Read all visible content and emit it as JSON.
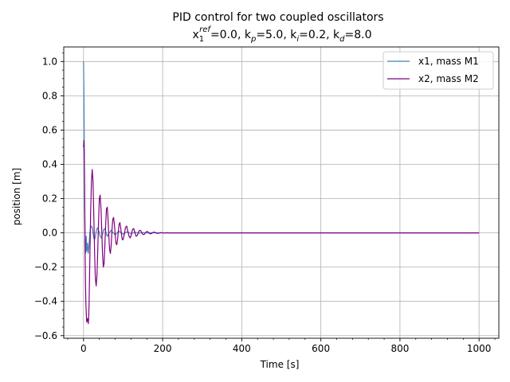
{
  "chart_data": {
    "type": "line",
    "title": "PID control for two coupled oscillators",
    "subtitle": {
      "pre": "x",
      "sub1": "1",
      "sup1": "ref",
      "part1": "=0.0, k",
      "sub2": "p",
      "part2": "=5.0, k",
      "sub3": "i",
      "part3": "=0.2, k",
      "sub4": "d",
      "part4": "=8.0"
    },
    "xlabel": "Time [s]",
    "ylabel": "position [m]",
    "xlim": [
      -50,
      1050
    ],
    "ylim": [
      -0.615,
      1.085
    ],
    "x_ticks": [
      0,
      200,
      400,
      600,
      800,
      1000
    ],
    "x_tick_labels": [
      "0",
      "200",
      "400",
      "600",
      "800",
      "1000"
    ],
    "y_ticks": [
      -0.6,
      -0.4,
      -0.2,
      0.0,
      0.2,
      0.4,
      0.6,
      0.8,
      1.0
    ],
    "y_tick_labels": [
      "−0.6",
      "−0.4",
      "−0.2",
      "0.0",
      "0.2",
      "0.4",
      "0.6",
      "0.8",
      "1.0"
    ],
    "grid": true,
    "legend_position": "top-right",
    "series": [
      {
        "name": "x1, mass M1",
        "color": "#4682b4",
        "x": [
          0,
          1,
          2,
          3,
          4,
          5,
          6,
          7,
          8,
          10,
          12,
          14,
          16,
          18,
          20,
          22,
          24,
          26,
          28,
          30,
          33,
          36,
          39,
          42,
          45,
          48,
          51,
          54,
          57,
          60,
          65,
          70,
          75,
          80,
          85,
          90,
          95,
          100,
          110,
          120,
          130,
          140,
          150,
          160,
          170,
          180,
          190,
          200,
          210,
          220,
          230,
          240,
          260,
          280,
          300,
          400,
          500,
          600,
          700,
          800,
          900,
          1000
        ],
        "values": [
          1.0,
          0.82,
          0.5,
          0.2,
          -0.05,
          -0.12,
          -0.08,
          -0.02,
          -0.11,
          -0.06,
          -0.12,
          -0.07,
          0.0,
          0.03,
          0.04,
          0.03,
          0.0,
          -0.03,
          -0.04,
          -0.02,
          0.02,
          0.03,
          0.01,
          -0.02,
          -0.03,
          -0.01,
          0.02,
          0.025,
          0.0,
          -0.02,
          0.0,
          0.015,
          0.0,
          -0.012,
          0.0,
          0.01,
          0.0,
          -0.008,
          0.006,
          -0.004,
          0.003,
          -0.002,
          0.002,
          -0.001,
          0.001,
          0.0,
          0.0,
          0.0,
          0.0,
          0.0,
          0.0,
          0.0,
          0.0,
          0.0,
          0.0,
          0.0,
          0.0,
          0.0,
          0.0,
          0.0,
          0.0,
          0.0
        ]
      },
      {
        "name": "x2, mass M2",
        "color": "#800080",
        "x": [
          0,
          1,
          2,
          3,
          4,
          5,
          6,
          8,
          10,
          12,
          13,
          14,
          16,
          18,
          20,
          22,
          24,
          26,
          28,
          30,
          32,
          34,
          36,
          38,
          40,
          42,
          44,
          46,
          48,
          50,
          52,
          54,
          56,
          58,
          60,
          62,
          64,
          66,
          68,
          70,
          72,
          74,
          76,
          78,
          80,
          82,
          84,
          86,
          88,
          90,
          92,
          94,
          96,
          98,
          100,
          103,
          106,
          109,
          112,
          115,
          118,
          121,
          124,
          127,
          130,
          133,
          136,
          139,
          142,
          145,
          148,
          151,
          154,
          157,
          160,
          163,
          166,
          169,
          172,
          175,
          178,
          181,
          184,
          187,
          190,
          195,
          200,
          205,
          210,
          215,
          220,
          230,
          240,
          250,
          260,
          280,
          300,
          400,
          500,
          600,
          700,
          800,
          900,
          1000
        ],
        "values": [
          0.5,
          0.54,
          0.42,
          0.15,
          -0.12,
          -0.3,
          -0.42,
          -0.52,
          -0.5,
          -0.53,
          -0.5,
          -0.42,
          -0.15,
          0.12,
          0.3,
          0.37,
          0.3,
          0.1,
          -0.12,
          -0.27,
          -0.31,
          -0.25,
          -0.1,
          0.07,
          0.2,
          0.22,
          0.15,
          0.02,
          -0.12,
          -0.2,
          -0.18,
          -0.07,
          0.05,
          0.14,
          0.15,
          0.08,
          -0.02,
          -0.1,
          -0.12,
          -0.07,
          0.02,
          0.08,
          0.09,
          0.05,
          -0.01,
          -0.06,
          -0.07,
          -0.04,
          0.01,
          0.05,
          0.06,
          0.03,
          -0.01,
          -0.04,
          -0.04,
          -0.01,
          0.03,
          0.04,
          0.01,
          -0.02,
          -0.03,
          -0.01,
          0.02,
          0.025,
          0.0,
          -0.02,
          -0.015,
          0.005,
          0.015,
          0.012,
          -0.003,
          -0.01,
          -0.008,
          0.002,
          0.008,
          0.006,
          -0.002,
          -0.006,
          -0.004,
          0.002,
          0.004,
          0.003,
          -0.001,
          -0.003,
          -0.002,
          0.002,
          0.0,
          -0.001,
          0.001,
          0.0,
          0.0,
          0.0,
          0.0,
          0.0,
          0.0,
          0.0,
          0.0,
          0.0,
          0.0,
          0.0,
          0.0,
          0.0,
          0.0,
          0.0
        ]
      }
    ]
  }
}
